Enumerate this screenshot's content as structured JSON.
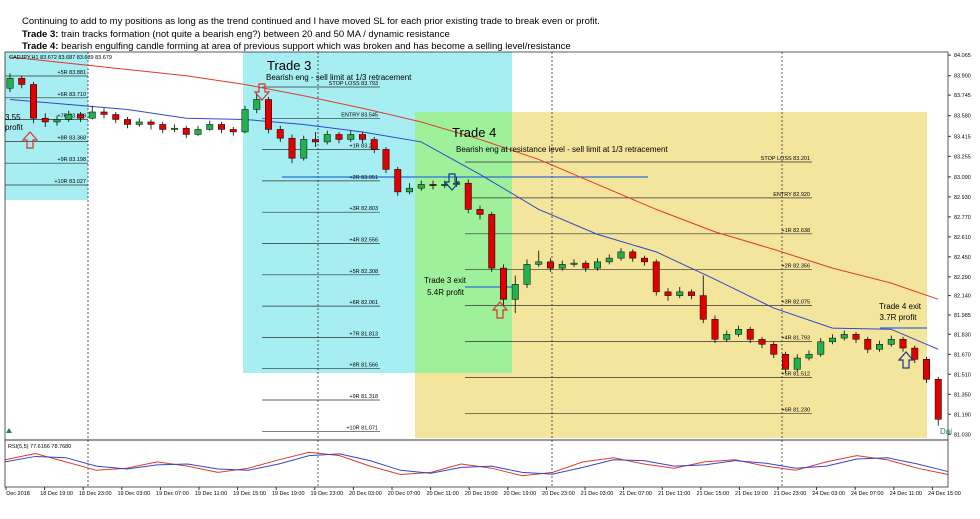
{
  "header": {
    "line1": "Continuing to add to my positions as long as the trend continued and I have moved SL for each prior existing trade to break even or profit.",
    "trade3_label": "Trade 3:",
    "trade3_text": " train tracks formation (not quite a bearish eng?) between 20 and 50 MA / dynamic resistance",
    "trade4_label": "Trade 4:",
    "trade4_text": " bearish engulfing candle forming at area of previous support which was broken and has become a selling level/resistance"
  },
  "chart_data": {
    "type": "candlestick",
    "title": "CADJPY,H1 83.672 83.687 83.639 83.679",
    "up_color": "#22b14c",
    "down_color": "#e00000",
    "ylim": [
      81.0,
      84.09
    ],
    "yticks": [
      84.065,
      {
        "value": 83.9,
        "label": "83.900"
      },
      83.745,
      {
        "value": 83.58,
        "label": "83.580"
      },
      83.415,
      83.255,
      {
        "value": 83.09,
        "label": "83.090"
      },
      {
        "value": 82.93,
        "label": "82.930"
      },
      {
        "value": 82.77,
        "label": "82.770"
      },
      {
        "value": 82.61,
        "label": "82.610"
      },
      {
        "value": 82.45,
        "label": "82.450"
      },
      {
        "value": 82.29,
        "label": "82.290"
      },
      {
        "value": 82.14,
        "label": "82.140"
      },
      81.985,
      {
        "value": 81.83,
        "label": "81.830"
      },
      {
        "value": 81.67,
        "label": "81.670"
      },
      {
        "value": 81.51,
        "label": "81.510"
      },
      {
        "value": 81.35,
        "label": "81.350"
      },
      {
        "value": 81.19,
        "label": "81.190"
      },
      {
        "value": 81.03,
        "label": "81.030"
      }
    ],
    "x_labels": [
      "Dec 2018",
      "18 Dec 19:00",
      "18 Dec 23:00",
      "19 Dec 03:00",
      "19 Dec 07:00",
      "19 Dec 11:00",
      "19 Dec 15:00",
      "19 Dec 19:00",
      "19 Dec 23:00",
      "20 Dec 03:00",
      "20 Dec 07:00",
      "20 Dec 11:00",
      "20 Dec 15:00",
      "20 Dec 19:00",
      "20 Dec 23:00",
      "21 Dec 03:00",
      "21 Dec 07:00",
      "21 Dec 11:00",
      "21 Dec 15:00",
      "21 Dec 19:00",
      "21 Dec 23:00",
      "24 Dec 03:00",
      "24 Dec 07:00",
      "24 Dec 11:00",
      "24 Dec 15:00"
    ],
    "candles": [
      [
        83.8,
        83.92,
        83.77,
        83.88
      ],
      [
        83.88,
        83.9,
        83.8,
        83.83
      ],
      [
        83.83,
        83.85,
        83.52,
        83.56
      ],
      [
        83.56,
        83.6,
        83.49,
        83.53
      ],
      [
        83.53,
        83.58,
        83.5,
        83.55
      ],
      [
        83.55,
        83.62,
        83.53,
        83.59
      ],
      [
        83.59,
        83.61,
        83.53,
        83.56
      ],
      [
        83.56,
        83.66,
        83.55,
        83.61
      ],
      [
        83.61,
        83.64,
        83.56,
        83.59
      ],
      [
        83.59,
        83.61,
        83.52,
        83.55
      ],
      [
        83.55,
        83.57,
        83.48,
        83.51
      ],
      [
        83.51,
        83.56,
        83.49,
        83.53
      ],
      [
        83.53,
        83.55,
        83.47,
        83.51
      ],
      [
        83.51,
        83.53,
        83.44,
        83.47
      ],
      [
        83.47,
        83.51,
        83.45,
        83.48
      ],
      [
        83.48,
        83.5,
        83.4,
        83.43
      ],
      [
        83.43,
        83.5,
        83.42,
        83.47
      ],
      [
        83.47,
        83.54,
        83.46,
        83.51
      ],
      [
        83.51,
        83.53,
        83.44,
        83.47
      ],
      [
        83.47,
        83.49,
        83.42,
        83.45
      ],
      [
        83.45,
        83.66,
        83.44,
        83.63
      ],
      [
        83.63,
        83.76,
        83.6,
        83.71
      ],
      [
        83.71,
        83.73,
        83.44,
        83.47
      ],
      [
        83.47,
        83.5,
        83.37,
        83.4
      ],
      [
        83.4,
        83.43,
        83.2,
        83.24
      ],
      [
        83.24,
        83.42,
        83.22,
        83.39
      ],
      [
        83.39,
        83.45,
        83.33,
        83.37
      ],
      [
        83.37,
        83.46,
        83.35,
        83.43
      ],
      [
        83.43,
        83.45,
        83.36,
        83.39
      ],
      [
        83.39,
        83.46,
        83.37,
        83.43
      ],
      [
        83.43,
        83.45,
        83.36,
        83.39
      ],
      [
        83.39,
        83.41,
        83.28,
        83.31
      ],
      [
        83.31,
        83.33,
        83.12,
        83.15
      ],
      [
        83.15,
        83.17,
        82.94,
        82.97
      ],
      [
        82.97,
        83.04,
        82.95,
        83.0
      ],
      [
        83.0,
        83.06,
        82.98,
        83.03
      ],
      [
        83.03,
        83.06,
        82.99,
        83.02
      ],
      [
        83.02,
        83.06,
        83.0,
        83.03
      ],
      [
        83.03,
        83.09,
        83.01,
        83.04
      ],
      [
        83.04,
        83.07,
        82.8,
        82.83
      ],
      [
        82.83,
        82.86,
        82.75,
        82.79
      ],
      [
        82.79,
        82.81,
        82.33,
        82.36
      ],
      [
        82.36,
        82.39,
        82.05,
        82.11
      ],
      [
        82.11,
        82.3,
        82.0,
        82.23
      ],
      [
        82.23,
        82.43,
        82.2,
        82.39
      ],
      [
        82.39,
        82.5,
        82.37,
        82.41
      ],
      [
        82.41,
        82.44,
        82.33,
        82.36
      ],
      [
        82.36,
        82.42,
        82.34,
        82.39
      ],
      [
        82.39,
        82.43,
        82.37,
        82.4
      ],
      [
        82.4,
        82.42,
        82.33,
        82.36
      ],
      [
        82.36,
        82.44,
        82.34,
        82.41
      ],
      [
        82.41,
        82.47,
        82.39,
        82.44
      ],
      [
        82.44,
        82.52,
        82.42,
        82.49
      ],
      [
        82.49,
        82.51,
        82.41,
        82.44
      ],
      [
        82.44,
        82.46,
        82.38,
        82.41
      ],
      [
        82.41,
        82.43,
        82.14,
        82.17
      ],
      [
        82.17,
        82.2,
        82.1,
        82.14
      ],
      [
        82.14,
        82.21,
        82.12,
        82.17
      ],
      [
        82.17,
        82.19,
        82.11,
        82.14
      ],
      [
        82.14,
        82.3,
        81.92,
        81.95
      ],
      [
        81.95,
        81.98,
        81.76,
        81.79
      ],
      [
        81.79,
        81.86,
        81.77,
        81.83
      ],
      [
        81.83,
        81.9,
        81.81,
        81.87
      ],
      [
        81.87,
        81.89,
        81.76,
        81.79
      ],
      [
        81.79,
        81.81,
        81.72,
        81.75
      ],
      [
        81.75,
        81.77,
        81.64,
        81.67
      ],
      [
        81.67,
        81.69,
        81.52,
        81.55
      ],
      [
        81.55,
        81.67,
        81.53,
        81.64
      ],
      [
        81.64,
        81.7,
        81.62,
        81.67
      ],
      [
        81.67,
        81.8,
        81.65,
        81.77
      ],
      [
        81.77,
        81.83,
        81.75,
        81.8
      ],
      [
        81.8,
        81.86,
        81.78,
        81.83
      ],
      [
        81.83,
        81.85,
        81.76,
        81.79
      ],
      [
        81.79,
        81.81,
        81.68,
        81.71
      ],
      [
        81.71,
        81.78,
        81.69,
        81.75
      ],
      [
        81.75,
        81.82,
        81.73,
        81.79
      ],
      [
        81.79,
        81.81,
        81.69,
        81.72
      ],
      [
        81.72,
        81.74,
        81.6,
        81.63
      ],
      [
        81.63,
        81.65,
        81.44,
        81.47
      ],
      [
        81.47,
        81.49,
        81.1,
        81.15
      ]
    ],
    "moving_averages": {
      "x": [
        0,
        5,
        10,
        15,
        20,
        25,
        30,
        35,
        40,
        45,
        50,
        55,
        60,
        65,
        70,
        75,
        79
      ],
      "series": [
        {
          "color": "#e03a2a",
          "values": [
            84.05,
            84.0,
            83.95,
            83.9,
            83.83,
            83.74,
            83.64,
            83.53,
            83.39,
            83.23,
            83.03,
            82.83,
            82.65,
            82.51,
            82.36,
            82.24,
            82.11
          ]
        },
        {
          "color": "#3347cc",
          "values": [
            83.71,
            83.67,
            83.63,
            83.56,
            83.55,
            83.51,
            83.45,
            83.37,
            83.11,
            82.83,
            82.63,
            82.49,
            82.27,
            82.04,
            81.88,
            81.87,
            81.71
          ]
        }
      ]
    },
    "rsi": {
      "label": "RSI(5,5) 77.6166 78.7680",
      "ylim": [
        0,
        100
      ],
      "series": [
        {
          "color": "#e03a2a",
          "values": [
            60,
            75,
            55,
            35,
            40,
            55,
            45,
            30,
            40,
            60,
            78,
            70,
            45,
            25,
            30,
            50,
            40,
            22,
            30,
            55,
            65,
            50,
            40,
            55,
            60,
            45,
            35,
            55,
            70,
            60,
            40,
            25
          ]
        },
        {
          "color": "#3347cc",
          "values": [
            55,
            68,
            65,
            45,
            38,
            48,
            50,
            38,
            35,
            50,
            70,
            74,
            58,
            35,
            28,
            42,
            45,
            30,
            26,
            42,
            60,
            58,
            45,
            48,
            58,
            52,
            40,
            45,
            62,
            65,
            50,
            32
          ]
        }
      ]
    }
  },
  "annotations": {
    "earlier_trade": {
      "levels": [
        "+5R 83.881",
        "+6R 83.710",
        "+7R 83.539",
        "+8R 83.368",
        "+9R 83.198",
        "+10R 83.027"
      ],
      "profit": [
        "3.55",
        "profit"
      ]
    },
    "trade3": {
      "title": "Trade 3",
      "note": "Bearish eng - sell limit at 1/3 retracement",
      "levels": [
        "STOP LOSS 83.793",
        "ENTRY 83.545",
        "+1R 83.298",
        "+2R 83.051",
        "+3R 82.803",
        "+4R 82.556",
        "+5R 82.308",
        "+6R 82.061",
        "+7R 81.813",
        "+8R 81.566",
        "+9R 81.318",
        "+10R 81.071"
      ],
      "exit": [
        "Trade 3 exit",
        "5.4R profit"
      ]
    },
    "trade4": {
      "title": "Trade 4",
      "note": "Bearish eng at resistance level - sell limit at 1/3 retracement",
      "levels": [
        "STOP LOSS 83.201",
        "ENTRY 82.920",
        "+1R 82.638",
        "+2R 82.356",
        "+3R 82.075",
        "+4R 81.793",
        "+5R 81.512",
        "+6R 81.230"
      ],
      "exit": [
        "Trade 4 exit",
        "3.7R profit"
      ]
    },
    "corner_label": "Dai"
  }
}
